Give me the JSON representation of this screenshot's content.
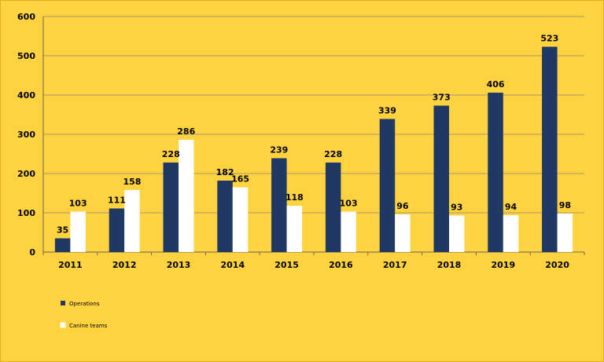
{
  "chart_data": {
    "type": "bar",
    "title": "",
    "xlabel": "",
    "ylabel": "",
    "categories": [
      "2011",
      "2012",
      "2013",
      "2014",
      "2015",
      "2016",
      "2017",
      "2018",
      "2019",
      "2020"
    ],
    "series": [
      {
        "name": "Operations",
        "color": "#1f3864",
        "values": [
          35,
          111,
          228,
          182,
          239,
          228,
          339,
          373,
          406,
          523
        ]
      },
      {
        "name": "Canine teams",
        "color": "#ffffff",
        "values": [
          103,
          158,
          286,
          165,
          118,
          103,
          96,
          93,
          94,
          98
        ]
      }
    ],
    "ylim": [
      0,
      600
    ],
    "yticks": [
      0,
      100,
      200,
      300,
      400,
      500,
      600
    ],
    "grid": true,
    "legend_position": "bottom-left",
    "background_color": "#ffd23f",
    "gridline_color": "#a89a6a"
  }
}
